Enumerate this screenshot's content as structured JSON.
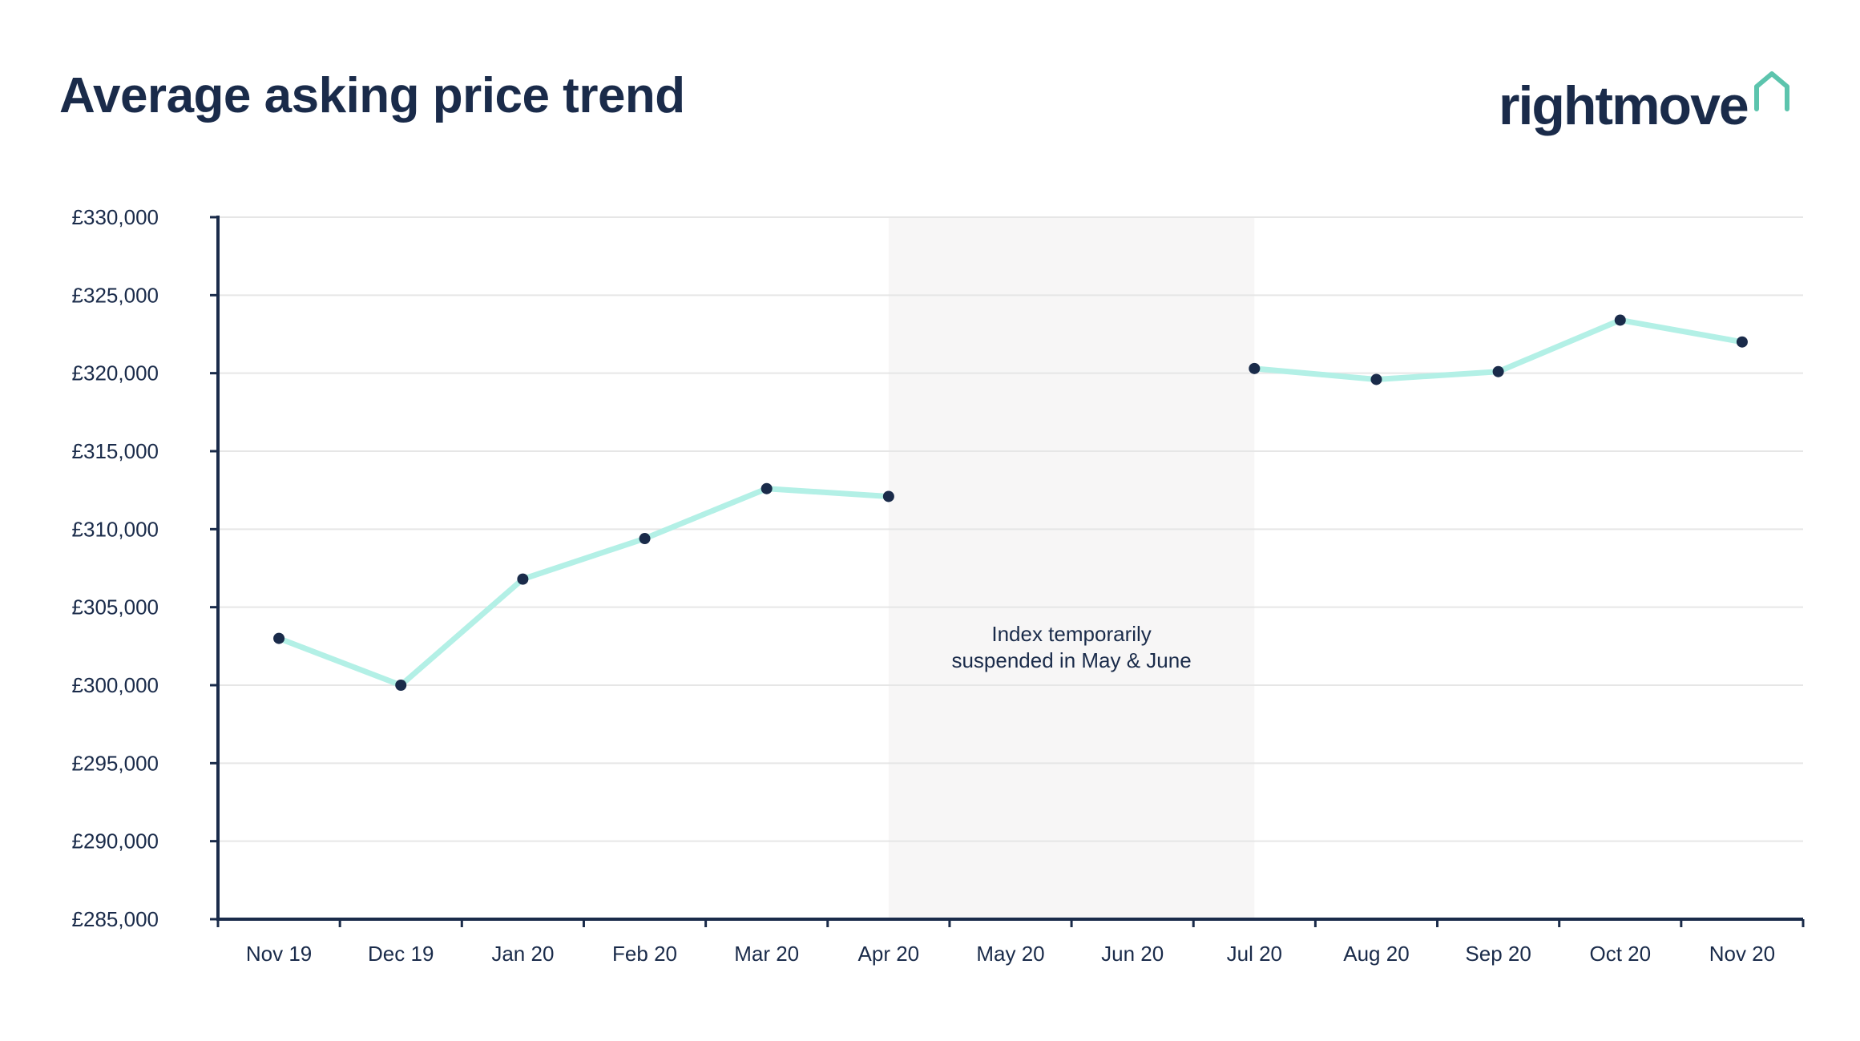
{
  "chart_data": {
    "type": "line",
    "title": "Average asking price trend",
    "xlabel": "",
    "ylabel": "",
    "categories": [
      "Nov 19",
      "Dec 19",
      "Jan 20",
      "Feb 20",
      "Mar 20",
      "Apr 20",
      "May 20",
      "Jun 20",
      "Jul 20",
      "Aug 20",
      "Sep 20",
      "Oct 20",
      "Nov 20"
    ],
    "y_ticks": [
      "£330,000",
      "£325,000",
      "£320,000",
      "£315,000",
      "£310,000",
      "£305,000",
      "£300,000",
      "£295,000",
      "£290,000",
      "£285,000"
    ],
    "ylim": [
      285000,
      330000
    ],
    "grid": true,
    "series": [
      {
        "values": [
          303000,
          300000,
          306800,
          309400,
          312600,
          312100,
          null,
          null,
          320300,
          319600,
          320100,
          323400,
          322000
        ],
        "line_color": "#b3f0e6",
        "marker_color": "#1a2b4a"
      }
    ],
    "shaded_region": {
      "from": "Apr 20",
      "to": "Jul 20",
      "color": "#f7f6f6",
      "annotation_line1": "Index temporarily",
      "annotation_line2": "suspended in May & June"
    }
  },
  "logo": {
    "text": "rightmove",
    "icon": "house-outline-icon",
    "icon_color": "#5cc4ad"
  },
  "colors": {
    "axis": "#1a2b4a",
    "grid": "#e6e6e6",
    "text": "#1a2b4a"
  }
}
